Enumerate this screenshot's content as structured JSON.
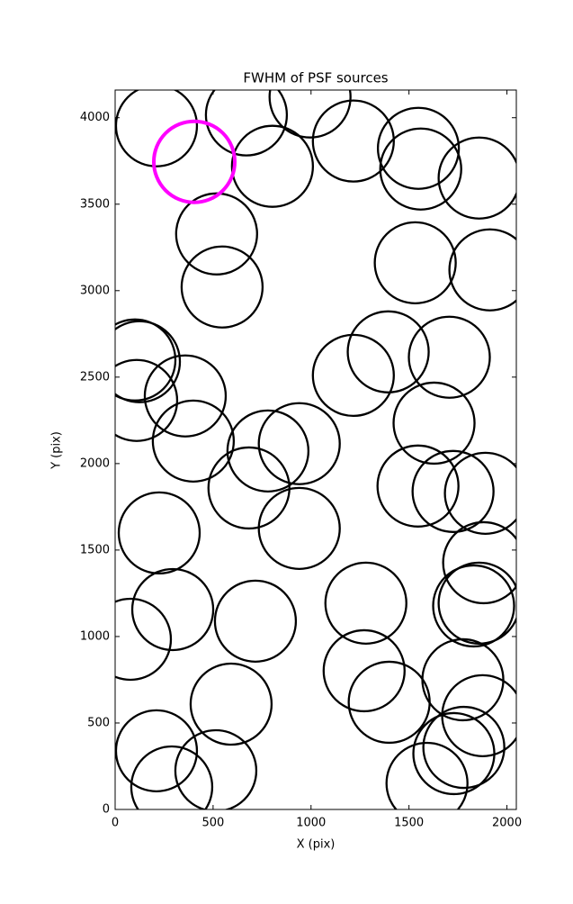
{
  "chart_data": {
    "type": "scatter",
    "title": "FWHM of PSF sources",
    "x_label": "X (pix)",
    "y_label": "Y (pix)",
    "xlim": [
      0,
      2048
    ],
    "ylim": [
      0,
      4160
    ],
    "xticks": [
      0,
      500,
      1000,
      1500,
      2000
    ],
    "yticks": [
      0,
      500,
      1000,
      1500,
      2000,
      2500,
      3000,
      3500,
      4000
    ],
    "series": [
      {
        "color": "#000000",
        "x": [
          211,
          670,
          995,
          803,
          1216,
          1548,
          1560,
          1858,
          518,
          546,
          1532,
          1913,
          124,
          101,
          110,
          358,
          399,
          683,
          780,
          940,
          1216,
          1394,
          1706,
          1628,
          1546,
          1725,
          1890,
          225,
          940,
          1881,
          294,
          716,
          1280,
          1830,
          1858,
          78,
          1271,
          1399,
          1775,
          1876,
          592,
          211,
          289,
          514,
          1592,
          1729,
          1780
        ],
        "values": [
          3953,
          4016,
          4120,
          3719,
          3865,
          3823,
          3703,
          3651,
          3328,
          3021,
          3161,
          3120,
          2589,
          2599,
          2365,
          2391,
          2130,
          1859,
          2073,
          2115,
          2510,
          2646,
          2615,
          2234,
          1870,
          1839,
          1828,
          1599,
          1625,
          1427,
          1156,
          1089,
          1193,
          1177,
          1193,
          984,
          802,
          620,
          750,
          542,
          609,
          339,
          130,
          224,
          151,
          323,
          359
        ]
      },
      {
        "color": "#ff00ff",
        "x": [
          404
        ],
        "values": [
          3745
        ]
      }
    ]
  }
}
